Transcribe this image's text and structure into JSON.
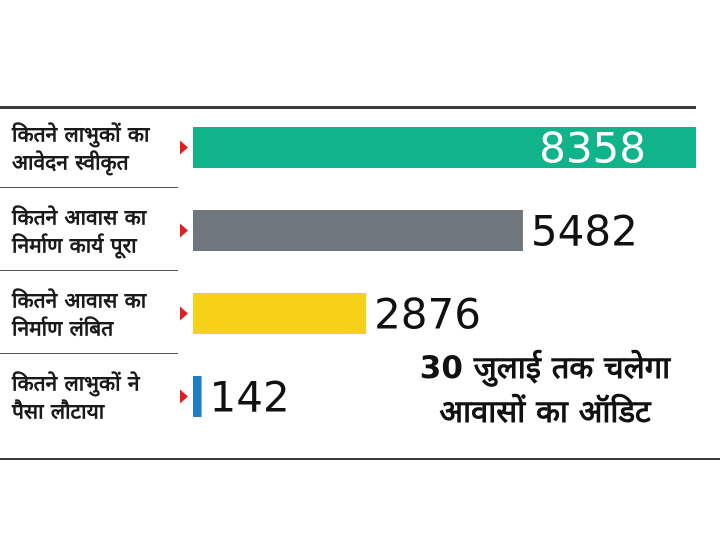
{
  "chart_data": {
    "type": "bar",
    "orientation": "horizontal",
    "categories": [
      [
        "कितने लाभुकों का",
        "आवेदन स्वीकृत"
      ],
      [
        "कितने आवास का",
        "निर्माण कार्य पूरा"
      ],
      [
        "कितने आवास का",
        "निर्माण लंबित"
      ],
      [
        "कितने लाभुकों ने",
        "पैसा लौटाया"
      ]
    ],
    "values": [
      8358,
      5482,
      2876,
      142
    ],
    "bar_colors": [
      "#10b38a",
      "#6f767c",
      "#f7d117",
      "#1e7dc8"
    ],
    "marker_color": "#e02020",
    "xlim": [
      0,
      8358
    ],
    "title": "",
    "xlabel": "",
    "ylabel": "",
    "grid": false,
    "legend": "none"
  },
  "headline": {
    "line1": "30 जुलाई तक चलेगा",
    "line2": "आवासों का ऑडिट"
  }
}
